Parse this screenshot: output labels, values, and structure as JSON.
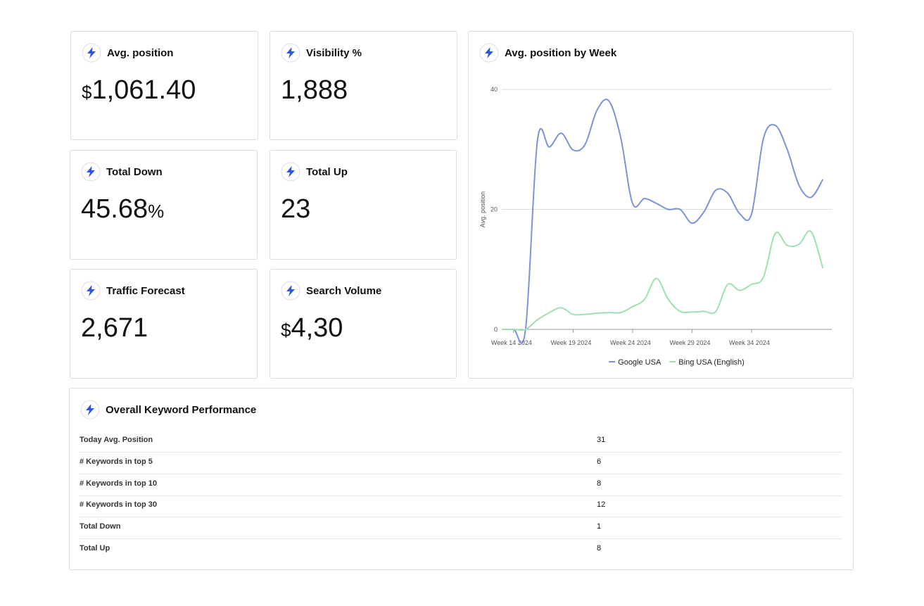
{
  "cards": [
    {
      "title": "Avg. position",
      "prefix": "$",
      "value": "1,061.40"
    },
    {
      "title": "Visibility %",
      "value": "1,888"
    },
    {
      "title": "Total Down",
      "value": "45.68",
      "suffix": "%"
    },
    {
      "title": "Total Up",
      "value": "23"
    },
    {
      "title": "Traffic Forecast",
      "value": "2,671"
    },
    {
      "title": "Search Volume",
      "prefix": "$",
      "value": "4,30"
    }
  ],
  "chart_data": {
    "type": "line",
    "title": "Avg. position by Week",
    "y_label": "Avg. position",
    "categories": [
      null,
      "Week 14 2024",
      null,
      null,
      null,
      null,
      "Week 19 2024",
      null,
      null,
      null,
      null,
      "Week 24 2024",
      null,
      null,
      null,
      null,
      "Week 29 2024",
      null,
      null,
      null,
      null,
      "Week 34 2024",
      null,
      null,
      null,
      null,
      null,
      null
    ],
    "series": [
      {
        "name": "Google USA",
        "color": "#7b93db",
        "values": [
          0,
          0,
          0,
          31.5,
          30.4,
          32.7,
          29.9,
          30.8,
          36.5,
          38.1,
          32,
          21,
          21.8,
          21,
          20,
          20,
          17.7,
          19.6,
          23.2,
          22.7,
          19.3,
          19.2,
          31.8,
          34,
          30,
          24,
          22,
          25
        ]
      },
      {
        "name": "Bing USA (English)",
        "color": "#9ee0b0",
        "values": [
          0,
          0,
          0,
          1.6,
          2.8,
          3.6,
          2.5,
          2.5,
          2.7,
          2.8,
          2.8,
          3.8,
          5,
          8.5,
          5,
          3,
          2.9,
          3,
          3,
          7.5,
          6.5,
          7.5,
          8.7,
          16,
          14,
          14.2,
          16.3,
          10.2
        ]
      }
    ],
    "ylim": [
      0,
      40
    ],
    "yticks": [
      0,
      20,
      40
    ],
    "grid": true,
    "legend": "bottom"
  },
  "table": {
    "title": "Overall Keyword Performance",
    "rows": [
      [
        "Today Avg. Position",
        31
      ],
      [
        "# Keywords in top 5",
        6
      ],
      [
        "# Keywords in top 10",
        8
      ],
      [
        "# Keywords in top 30",
        12
      ],
      [
        "Total Down",
        1
      ],
      [
        "Total Up",
        8
      ]
    ]
  }
}
